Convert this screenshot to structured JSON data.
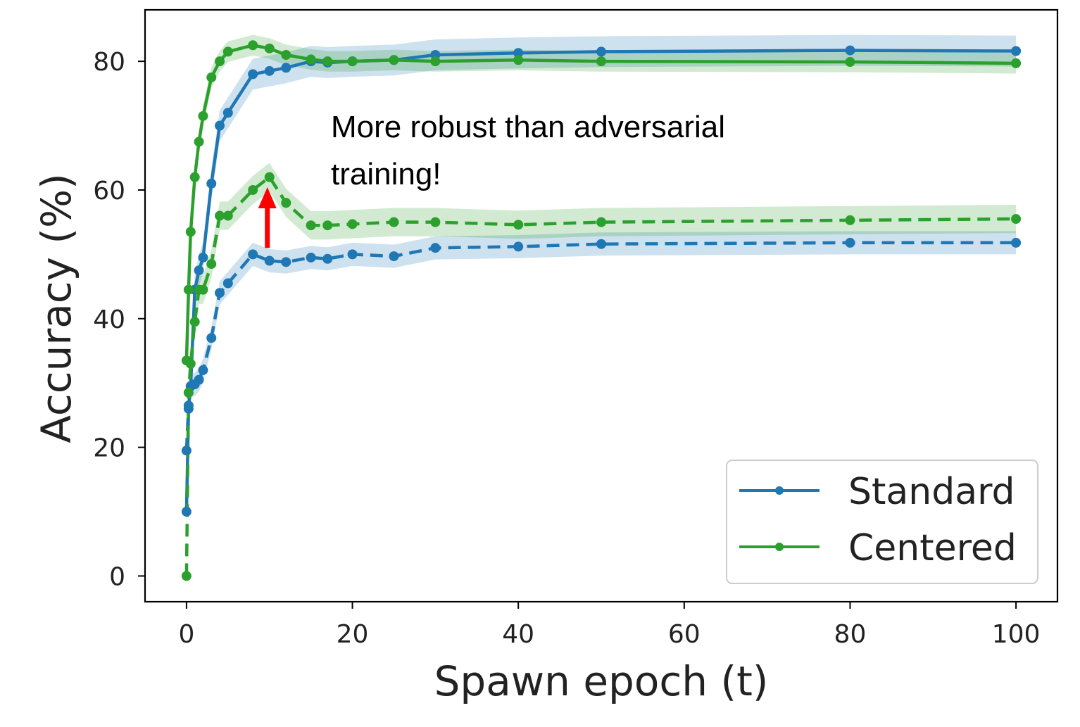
{
  "chart_data": {
    "type": "line",
    "title": "",
    "xlabel": "Spawn epoch (t)",
    "ylabel": "Accuracy (%)",
    "xlim": [
      -5,
      105
    ],
    "ylim": [
      -4,
      88
    ],
    "xticks": [
      0,
      20,
      40,
      60,
      80,
      100
    ],
    "yticks": [
      0,
      20,
      40,
      60,
      80
    ],
    "grid": false,
    "legend_position": "lower-right",
    "legend": [
      {
        "label": "Standard",
        "color": "#1f77b4"
      },
      {
        "label": "Centered",
        "color": "#2ca02c"
      }
    ],
    "annotation": {
      "lines": [
        "More robust than adversarial",
        "training!"
      ],
      "arrow_color": "#ff0000",
      "arrow_x": 10,
      "arrow_from_y": 51,
      "arrow_to_y": 60
    },
    "series": [
      {
        "name": "Standard",
        "color": "#1f77b4",
        "linestyle": "solid",
        "x": [
          0,
          0.25,
          0.5,
          1,
          1.5,
          2,
          3,
          4,
          5,
          8,
          10,
          12,
          15,
          17,
          20,
          25,
          30,
          40,
          50,
          80,
          100
        ],
        "y": [
          10,
          26,
          29.5,
          44.5,
          47.5,
          49.5,
          61,
          70,
          72,
          78,
          78.5,
          79,
          80,
          79.8,
          80,
          80.2,
          81,
          81.3,
          81.5,
          81.7,
          81.6
        ]
      },
      {
        "name": "Centered",
        "color": "#2ca02c",
        "linestyle": "solid",
        "x": [
          0,
          0.25,
          0.5,
          1,
          1.5,
          2,
          3,
          4,
          5,
          8,
          10,
          12,
          15,
          17,
          20,
          25,
          30,
          40,
          50,
          80,
          100
        ],
        "y": [
          33.5,
          44.5,
          53.5,
          62,
          67.5,
          71.5,
          77.5,
          80,
          81.5,
          82.5,
          82,
          81,
          80.3,
          80,
          80,
          80.2,
          80,
          80.2,
          80,
          79.9,
          79.7
        ]
      },
      {
        "name": "",
        "color": "#1f77b4",
        "linestyle": "dashed",
        "x": [
          0,
          0.25,
          0.5,
          1,
          1.5,
          2,
          3,
          4,
          5,
          8,
          10,
          12,
          15,
          17,
          20,
          25,
          30,
          40,
          50,
          80,
          100
        ],
        "y": [
          19.5,
          26.5,
          29.5,
          29.8,
          30.5,
          32,
          37,
          44,
          45.5,
          50,
          49,
          48.8,
          49.5,
          49.3,
          50,
          49.7,
          51,
          51.2,
          51.6,
          51.8,
          51.8
        ]
      },
      {
        "name": "",
        "color": "#2ca02c",
        "linestyle": "dashed",
        "x": [
          0,
          0.25,
          0.5,
          1,
          1.5,
          2,
          3,
          4,
          5,
          8,
          10,
          12,
          15,
          17,
          20,
          25,
          30,
          40,
          50,
          80,
          100
        ],
        "y": [
          0,
          28.5,
          33,
          39.5,
          44.5,
          44.5,
          48.5,
          56,
          56,
          60,
          62,
          58,
          54.5,
          54.5,
          54.7,
          55,
          55,
          54.6,
          55,
          55.3,
          55.5
        ]
      }
    ]
  }
}
